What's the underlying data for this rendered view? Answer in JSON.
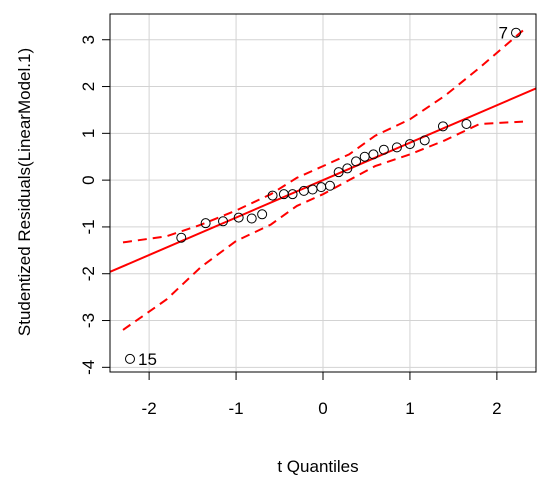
{
  "chart_data": {
    "type": "scatter",
    "title": "",
    "xlabel": "t Quantiles",
    "ylabel": "Studentized Residuals(LinearModel.1)",
    "xlim": [
      -2.45,
      2.45
    ],
    "ylim": [
      -4.1,
      3.55
    ],
    "xticks": [
      -2,
      -1,
      0,
      1,
      2
    ],
    "yticks": [
      -4,
      -3,
      -2,
      -1,
      0,
      1,
      2,
      3
    ],
    "grid": true,
    "legend": "none",
    "points": [
      {
        "x": -2.22,
        "y": -3.82
      },
      {
        "x": -1.63,
        "y": -1.23
      },
      {
        "x": -1.35,
        "y": -0.92
      },
      {
        "x": -1.15,
        "y": -0.88
      },
      {
        "x": -0.97,
        "y": -0.8
      },
      {
        "x": -0.82,
        "y": -0.82
      },
      {
        "x": -0.7,
        "y": -0.73
      },
      {
        "x": -0.58,
        "y": -0.33
      },
      {
        "x": -0.45,
        "y": -0.3
      },
      {
        "x": -0.35,
        "y": -0.3
      },
      {
        "x": -0.22,
        "y": -0.23
      },
      {
        "x": -0.12,
        "y": -0.2
      },
      {
        "x": -0.02,
        "y": -0.15
      },
      {
        "x": 0.08,
        "y": -0.12
      },
      {
        "x": 0.18,
        "y": 0.17
      },
      {
        "x": 0.28,
        "y": 0.25
      },
      {
        "x": 0.38,
        "y": 0.4
      },
      {
        "x": 0.48,
        "y": 0.5
      },
      {
        "x": 0.58,
        "y": 0.55
      },
      {
        "x": 0.7,
        "y": 0.65
      },
      {
        "x": 0.85,
        "y": 0.7
      },
      {
        "x": 1.0,
        "y": 0.77
      },
      {
        "x": 1.17,
        "y": 0.85
      },
      {
        "x": 1.38,
        "y": 1.15
      },
      {
        "x": 1.65,
        "y": 1.2
      },
      {
        "x": 2.22,
        "y": 3.15
      }
    ],
    "point_labels": [
      {
        "x": -2.22,
        "y": -3.82,
        "text": "15"
      },
      {
        "x": 2.22,
        "y": 3.15,
        "text": "7"
      }
    ],
    "fit_line": {
      "intercept": 0.0,
      "slope": 0.8
    },
    "envelope_upper": [
      [
        -2.3,
        -1.33
      ],
      [
        -1.8,
        -1.2
      ],
      [
        -1.4,
        -0.95
      ],
      [
        -1.0,
        -0.65
      ],
      [
        -0.6,
        -0.3
      ],
      [
        -0.3,
        0.05
      ],
      [
        0.0,
        0.3
      ],
      [
        0.3,
        0.55
      ],
      [
        0.6,
        0.95
      ],
      [
        1.0,
        1.3
      ],
      [
        1.4,
        1.8
      ],
      [
        1.8,
        2.4
      ],
      [
        2.3,
        3.2
      ]
    ],
    "envelope_lower": [
      [
        -2.3,
        -3.2
      ],
      [
        -1.8,
        -2.55
      ],
      [
        -1.4,
        -1.85
      ],
      [
        -1.0,
        -1.3
      ],
      [
        -0.6,
        -0.95
      ],
      [
        -0.3,
        -0.55
      ],
      [
        0.0,
        -0.3
      ],
      [
        0.3,
        0.0
      ],
      [
        0.6,
        0.3
      ],
      [
        1.0,
        0.55
      ],
      [
        1.4,
        0.85
      ],
      [
        1.8,
        1.2
      ],
      [
        2.3,
        1.25
      ]
    ],
    "colors": {
      "points": "#000000",
      "fit_line": "#ff0000",
      "envelope": "#ff0000",
      "grid": "#d3d3d3",
      "frame": "#000000"
    }
  }
}
